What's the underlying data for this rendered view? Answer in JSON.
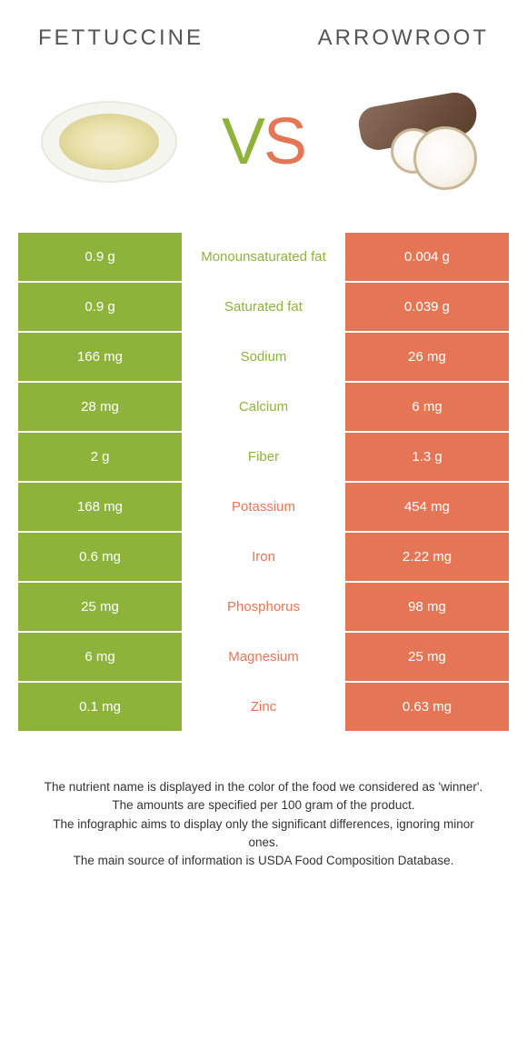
{
  "header": {
    "left_title": "Fettuccine",
    "right_title": "Arrowroot"
  },
  "vs": {
    "v": "V",
    "s": "S"
  },
  "colors": {
    "green": "#8db33a",
    "orange": "#e57655",
    "mid_text_green": "#8db33a",
    "mid_text_orange": "#e57655",
    "cell_text": "#ffffff"
  },
  "table": {
    "rows": [
      {
        "left": "0.9 g",
        "label": "Monounsaturated fat",
        "right": "0.004 g",
        "winner": "left"
      },
      {
        "left": "0.9 g",
        "label": "Saturated fat",
        "right": "0.039 g",
        "winner": "left"
      },
      {
        "left": "166 mg",
        "label": "Sodium",
        "right": "26 mg",
        "winner": "left"
      },
      {
        "left": "28 mg",
        "label": "Calcium",
        "right": "6 mg",
        "winner": "left"
      },
      {
        "left": "2 g",
        "label": "Fiber",
        "right": "1.3 g",
        "winner": "left"
      },
      {
        "left": "168 mg",
        "label": "Potassium",
        "right": "454 mg",
        "winner": "right"
      },
      {
        "left": "0.6 mg",
        "label": "Iron",
        "right": "2.22 mg",
        "winner": "right"
      },
      {
        "left": "25 mg",
        "label": "Phosphorus",
        "right": "98 mg",
        "winner": "right"
      },
      {
        "left": "6 mg",
        "label": "Magnesium",
        "right": "25 mg",
        "winner": "right"
      },
      {
        "left": "0.1 mg",
        "label": "Zinc",
        "right": "0.63 mg",
        "winner": "right"
      }
    ]
  },
  "footer": {
    "line1": "The nutrient name is displayed in the color of the food we considered as 'winner'.",
    "line2": "The amounts are specified per 100 gram of the product.",
    "line3": "The infographic aims to display only the significant differences, ignoring minor ones.",
    "line4": "The main source of information is USDA Food Composition Database."
  }
}
